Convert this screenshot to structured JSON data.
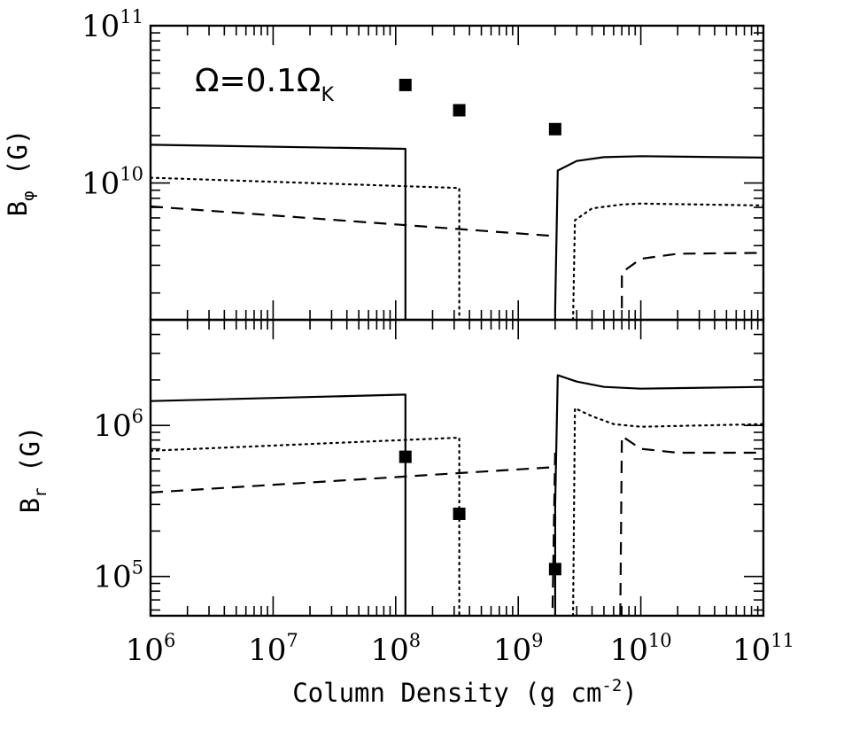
{
  "chart_data": [
    {
      "type": "line",
      "panel": "top",
      "ylabel": {
        "main": "B",
        "sub": "φ",
        "rest": " (G)"
      },
      "annotation": {
        "main": "Ω=0.1Ω",
        "sub": "K"
      },
      "xscale": "log",
      "yscale": "log",
      "xlim": [
        1000000.0,
        100000000000.0
      ],
      "ylim": [
        1350000000.0,
        100000000000.0
      ],
      "yticks": [
        {
          "value": 10000000000.0,
          "base": "10",
          "exp": "10"
        },
        {
          "value": 100000000000.0,
          "base": "10",
          "exp": "11"
        }
      ],
      "series": [
        {
          "style": "solid",
          "points": [
            [
              1000000.0,
              17500000000.0
            ],
            [
              120000000.0,
              16500000000.0
            ],
            [
              120000000.0,
              1350000000.0
            ]
          ]
        },
        {
          "style": "solid",
          "points": [
            [
              2000000000.0,
              1350000000.0
            ],
            [
              2000000000.0,
              1600000000.0
            ],
            [
              2100000000.0,
              12000000000.0
            ],
            [
              3000000000.0,
              13800000000.0
            ],
            [
              5000000000.0,
              14600000000.0
            ],
            [
              10000000000.0,
              14800000000.0
            ],
            [
              100000000000.0,
              14500000000.0
            ]
          ]
        },
        {
          "style": "dotted",
          "points": [
            [
              1000000.0,
              10800000000.0
            ],
            [
              330000000.0,
              9300000000.0
            ],
            [
              330000000.0,
              1350000000.0
            ]
          ]
        },
        {
          "style": "dotted",
          "points": [
            [
              2800000000.0,
              1350000000.0
            ],
            [
              2900000000.0,
              5800000000.0
            ],
            [
              4000000000.0,
              6900000000.0
            ],
            [
              7000000000.0,
              7300000000.0
            ],
            [
              10000000000.0,
              7400000000.0
            ],
            [
              100000000000.0,
              7200000000.0
            ]
          ]
        },
        {
          "style": "dashed",
          "points": [
            [
              1000000.0,
              7100000000.0
            ],
            [
              2000000000.0,
              4600000000.0
            ]
          ]
        },
        {
          "style": "dashed",
          "points": [
            [
              7000000000.0,
              1600000000.0
            ],
            [
              7000000000.0,
              2700000000.0
            ],
            [
              10000000000.0,
              3300000000.0
            ],
            [
              20000000000.0,
              3550000000.0
            ],
            [
              100000000000.0,
              3600000000.0
            ]
          ]
        }
      ],
      "markers": {
        "style": "filled-square",
        "points": [
          [
            120000000.0,
            42000000000.0
          ],
          [
            330000000.0,
            29000000000.0
          ],
          [
            2000000000.0,
            22000000000.0
          ]
        ]
      }
    },
    {
      "type": "line",
      "panel": "bottom",
      "xlabel": {
        "main": "Column Density (g cm",
        "sup": "-2",
        "rest": ")"
      },
      "ylabel": {
        "main": "B",
        "sub": "r",
        "rest": " (G)"
      },
      "xscale": "log",
      "yscale": "log",
      "xlim": [
        1000000.0,
        100000000000.0
      ],
      "ylim": [
        55000.0,
        5000000.0
      ],
      "xticks": [
        {
          "value": 1000000.0,
          "base": "10",
          "exp": "6"
        },
        {
          "value": 10000000.0,
          "base": "10",
          "exp": "7"
        },
        {
          "value": 100000000.0,
          "base": "10",
          "exp": "8"
        },
        {
          "value": 1000000000.0,
          "base": "10",
          "exp": "9"
        },
        {
          "value": 10000000000.0,
          "base": "10",
          "exp": "10"
        },
        {
          "value": 100000000000.0,
          "base": "10",
          "exp": "11"
        }
      ],
      "yticks": [
        {
          "value": 100000.0,
          "base": "10",
          "exp": "5"
        },
        {
          "value": 1000000.0,
          "base": "10",
          "exp": "6"
        }
      ],
      "series": [
        {
          "style": "solid",
          "points": [
            [
              1000000.0,
              1450000.0
            ],
            [
              120000000.0,
              1600000.0
            ],
            [
              120000000.0,
              55000.0
            ]
          ]
        },
        {
          "style": "solid",
          "points": [
            [
              2000000000.0,
              55000.0
            ],
            [
              2000000000.0,
              300000.0
            ],
            [
              2100000000.0,
              2150000.0
            ],
            [
              3000000000.0,
              1950000.0
            ],
            [
              5000000000.0,
              1800000.0
            ],
            [
              10000000000.0,
              1750000.0
            ],
            [
              100000000000.0,
              1800000.0
            ]
          ]
        },
        {
          "style": "dotted",
          "points": [
            [
              1000000.0,
              680000.0
            ],
            [
              330000000.0,
              830000.0
            ],
            [
              330000000.0,
              55000.0
            ]
          ]
        },
        {
          "style": "dotted",
          "points": [
            [
              2800000000.0,
              55000.0
            ],
            [
              2900000000.0,
              1300000.0
            ],
            [
              4000000000.0,
              1150000.0
            ],
            [
              6000000000.0,
              1020000.0
            ],
            [
              10000000000.0,
              980000.0
            ],
            [
              100000000000.0,
              1020000.0
            ]
          ]
        },
        {
          "style": "dashed",
          "points": [
            [
              1000000.0,
              360000.0
            ],
            [
              2000000000.0,
              530000.0
            ],
            [
              2000000000.0,
              700000.0
            ],
            [
              1900000000.0,
              55000.0
            ]
          ]
        },
        {
          "style": "dashed",
          "points": [
            [
              6800000000.0,
              55000.0
            ],
            [
              7000000000.0,
              850000.0
            ],
            [
              10000000000.0,
              700000.0
            ],
            [
              20000000000.0,
              660000.0
            ],
            [
              100000000000.0,
              660000.0
            ]
          ]
        }
      ],
      "markers": {
        "style": "filled-square",
        "points": [
          [
            120000000.0,
            620000.0
          ],
          [
            330000000.0,
            260000.0
          ],
          [
            2000000000.0,
            112000.0
          ]
        ]
      }
    }
  ]
}
